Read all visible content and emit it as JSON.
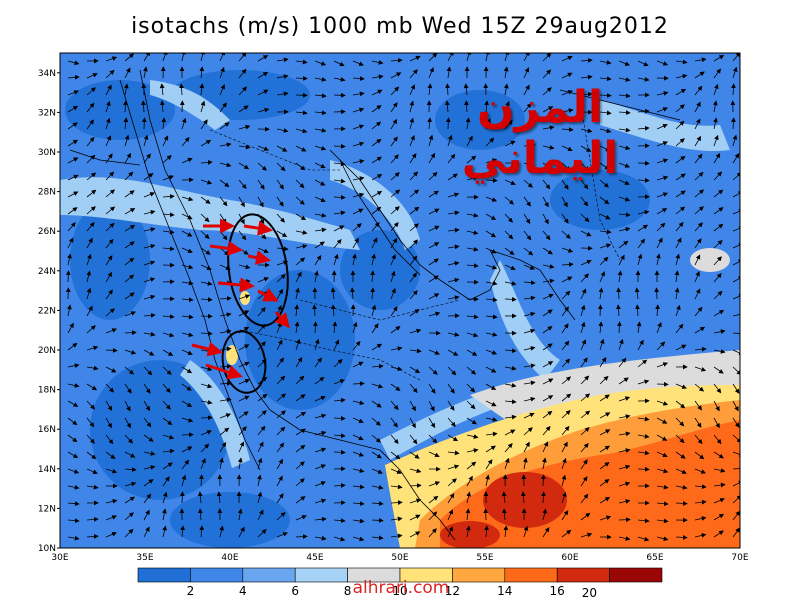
{
  "title": "isotachs (m/s) 1000 mb Wed 15Z 29aug2012",
  "arabic_title": "المزن اليماني",
  "watermark": "alhrari.com",
  "lat_labels": [
    "34N",
    "32N",
    "30N",
    "28N",
    "26N",
    "24N",
    "22N",
    "20N",
    "18N",
    "16N",
    "14N",
    "12N",
    "10N"
  ],
  "lon_labels": [
    "30E",
    "35E",
    "40E",
    "45E",
    "50E",
    "55E",
    "60E",
    "65E",
    "70E"
  ],
  "lat_values": [
    34,
    32,
    30,
    28,
    26,
    24,
    22,
    20,
    18,
    16,
    14,
    12,
    10
  ],
  "lon_values": [
    30,
    35,
    40,
    45,
    50,
    55,
    60,
    65,
    70
  ],
  "colorbar": {
    "labels": [
      "2",
      "4",
      "6",
      "8",
      "10",
      "12",
      "14",
      "16"
    ],
    "colors": [
      "#1f6fd6",
      "#3f86e8",
      "#6aa6f0",
      "#a6d2f5",
      "#dcdcdc",
      "#ffe27a",
      "#ffa840",
      "#ff6a1a",
      "#d22a0e",
      "#9a0606"
    ],
    "final_label": "20"
  },
  "palette": {
    "bg_low": "#3f86e8",
    "annotation_arrow": "#e00000",
    "annotation_ellipse": "#000000"
  },
  "icons": [
    "wind-vector-icon",
    "annotation-arrow-icon"
  ]
}
